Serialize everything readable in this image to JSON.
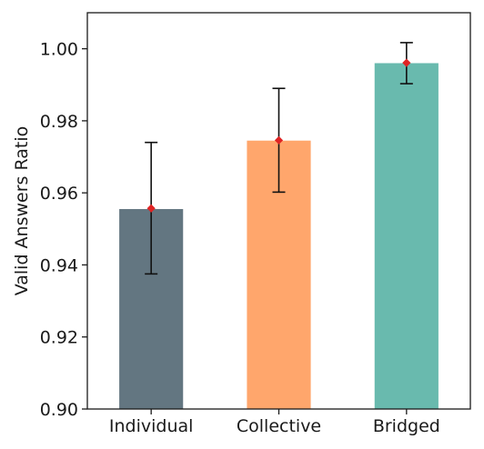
{
  "chart_data": {
    "type": "bar",
    "title": "",
    "xlabel": "",
    "ylabel": "Valid Answers Ratio",
    "categories": [
      "Individual",
      "Collective",
      "Bridged"
    ],
    "values": [
      0.9555,
      0.9745,
      0.996
    ],
    "error_bars": [
      {
        "lower": 0.9375,
        "upper": 0.974
      },
      {
        "lower": 0.9602,
        "upper": 0.989
      },
      {
        "lower": 0.9903,
        "upper": 1.0017
      }
    ],
    "mean_markers": [
      0.9557,
      0.9746,
      0.9961
    ],
    "bar_colors": [
      "#637681",
      "#FFA66C",
      "#69BAAE"
    ],
    "marker_color": "#E02424",
    "ylim": [
      0.9,
      1.01
    ],
    "yticks": [
      0.9,
      0.92,
      0.94,
      0.96,
      0.98,
      1.0
    ],
    "ytick_labels": [
      "0.90",
      "0.92",
      "0.94",
      "0.96",
      "0.98",
      "1.00"
    ],
    "grid": false,
    "legend": "none"
  }
}
